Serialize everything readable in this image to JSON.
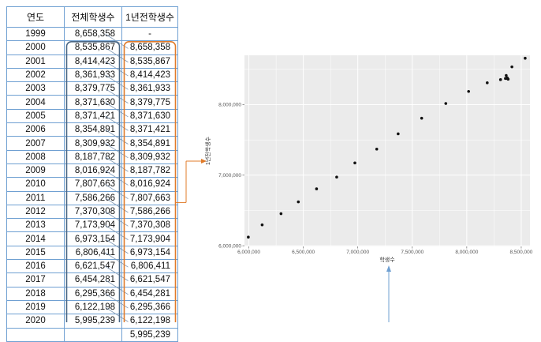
{
  "table": {
    "headers": [
      "연도",
      "전체학생수",
      "1년전학생수"
    ],
    "rows": [
      {
        "year": "1999",
        "total": "8,658,358",
        "prev": "-"
      },
      {
        "year": "2000",
        "total": "8,535,867",
        "prev": "8,658,358"
      },
      {
        "year": "2001",
        "total": "8,414,423",
        "prev": "8,535,867"
      },
      {
        "year": "2002",
        "total": "8,361,933",
        "prev": "8,414,423"
      },
      {
        "year": "2003",
        "total": "8,379,775",
        "prev": "8,361,933"
      },
      {
        "year": "2004",
        "total": "8,371,630",
        "prev": "8,379,775"
      },
      {
        "year": "2005",
        "total": "8,371,421",
        "prev": "8,371,630"
      },
      {
        "year": "2006",
        "total": "8,354,891",
        "prev": "8,371,421"
      },
      {
        "year": "2007",
        "total": "8,309,932",
        "prev": "8,354,891"
      },
      {
        "year": "2008",
        "total": "8,187,782",
        "prev": "8,309,932"
      },
      {
        "year": "2009",
        "total": "8,016,924",
        "prev": "8,187,782"
      },
      {
        "year": "2010",
        "total": "7,807,663",
        "prev": "8,016,924"
      },
      {
        "year": "2011",
        "total": "7,586,266",
        "prev": "7,807,663"
      },
      {
        "year": "2012",
        "total": "7,370,308",
        "prev": "7,586,266"
      },
      {
        "year": "2013",
        "total": "7,173,904",
        "prev": "7,370,308"
      },
      {
        "year": "2014",
        "total": "6,973,154",
        "prev": "7,173,904"
      },
      {
        "year": "2015",
        "total": "6,806,411",
        "prev": "6,973,154"
      },
      {
        "year": "2016",
        "total": "6,621,547",
        "prev": "6,806,411"
      },
      {
        "year": "2017",
        "total": "6,454,281",
        "prev": "6,621,547"
      },
      {
        "year": "2018",
        "total": "6,295,366",
        "prev": "6,454,281"
      },
      {
        "year": "2019",
        "total": "6,122,198",
        "prev": "6,295,366"
      },
      {
        "year": "2020",
        "total": "5,995,239",
        "prev": "6,122,198"
      },
      {
        "year": "",
        "total": "",
        "prev": "5,995,239"
      }
    ]
  },
  "colors": {
    "table_border": "#6fa0d2",
    "total_box": "#4a6785",
    "prev_box": "#e07b2a",
    "panel_bg": "#ebebeb",
    "grid": "#ffffff",
    "point": "#111111"
  },
  "chart_data": {
    "type": "scatter",
    "xlabel": "학생수",
    "ylabel": "1년전학생수",
    "xlim": [
      5960000,
      8580000
    ],
    "ylim": [
      5990000,
      8700000
    ],
    "xticks": [
      {
        "value": 6000000,
        "label": "6,000,000"
      },
      {
        "value": 6500000,
        "label": "6,500,000"
      },
      {
        "value": 7000000,
        "label": "7,000,000"
      },
      {
        "value": 7500000,
        "label": "7,500,000"
      },
      {
        "value": 8000000,
        "label": "8,000,000"
      },
      {
        "value": 8500000,
        "label": "8,500,000"
      }
    ],
    "yticks": [
      {
        "value": 6000000,
        "label": "6,000,000"
      },
      {
        "value": 7000000,
        "label": "7,000,000"
      },
      {
        "value": 8000000,
        "label": "8,000,000"
      }
    ],
    "grid": true,
    "points": [
      [
        8535867,
        8658358
      ],
      [
        8414423,
        8535867
      ],
      [
        8361933,
        8414423
      ],
      [
        8379775,
        8361933
      ],
      [
        8371630,
        8379775
      ],
      [
        8371421,
        8371630
      ],
      [
        8354891,
        8371421
      ],
      [
        8309932,
        8354891
      ],
      [
        8187782,
        8309932
      ],
      [
        8016924,
        8187782
      ],
      [
        7807663,
        8016924
      ],
      [
        7586266,
        7807663
      ],
      [
        7370308,
        7586266
      ],
      [
        7173904,
        7370308
      ],
      [
        6973154,
        7173904
      ],
      [
        6806411,
        6973154
      ],
      [
        6621547,
        6806411
      ],
      [
        6454281,
        6621547
      ],
      [
        6295366,
        6454281
      ],
      [
        6122198,
        6295366
      ],
      [
        5995239,
        6122198
      ]
    ]
  }
}
